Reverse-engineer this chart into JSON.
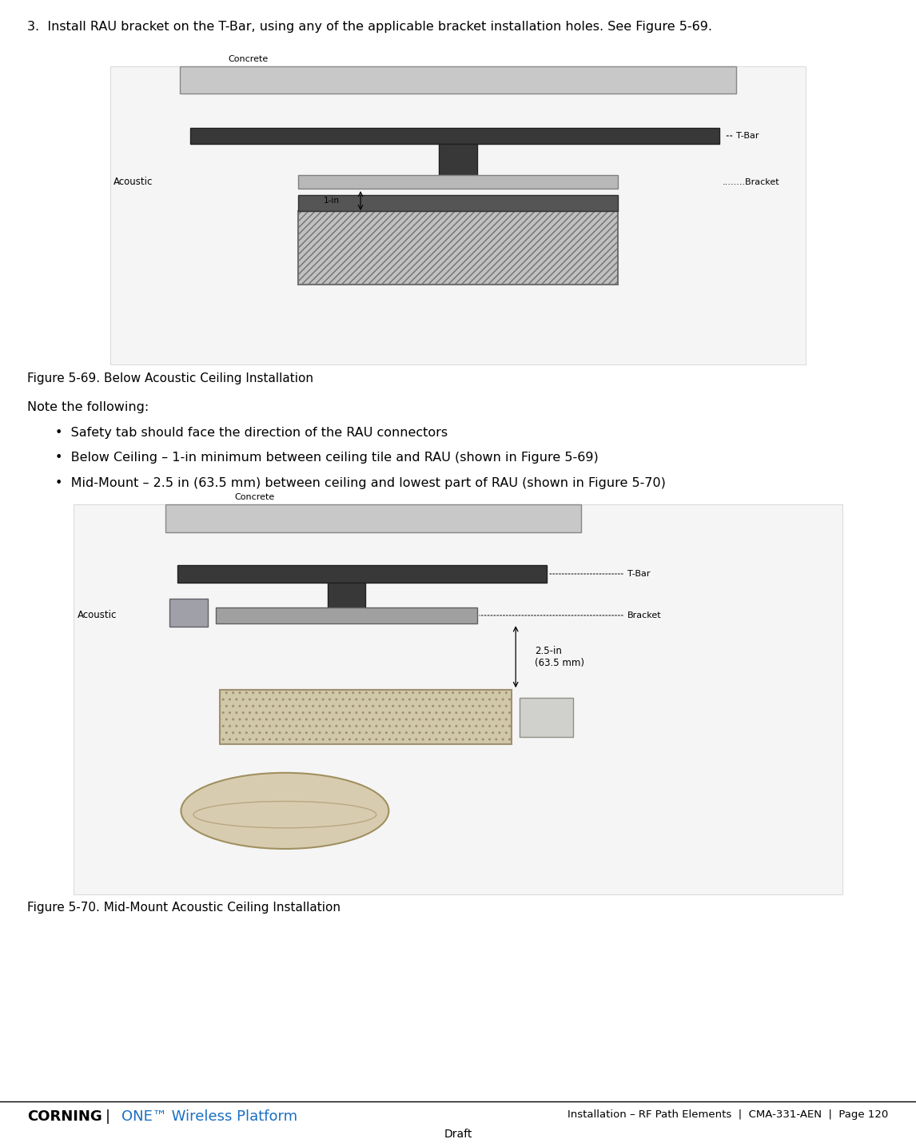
{
  "bg_color": "#ffffff",
  "text_color": "#000000",
  "step_text": "3.  Install RAU bracket on the T-Bar, using any of the applicable bracket installation holes. See Figure 5-69.",
  "fig69_caption": "Figure 5-69. Below Acoustic Ceiling Installation",
  "note_header": "Note the following:",
  "bullets": [
    "Safety tab should face the direction of the RAU connectors",
    "Below Ceiling – 1-in minimum between ceiling tile and RAU (shown in Figure 5-69)",
    "Mid-Mount – 2.5 in (63.5 mm) between ceiling and lowest part of RAU (shown in Figure 5-70)"
  ],
  "fig70_caption": "Figure 5-70. Mid-Mount Acoustic Ceiling Installation",
  "footer_left": "CORNING",
  "footer_left2": "ONE™ Wireless Platform",
  "footer_right": "Installation – RF Path Elements  |  CMA-331-AEN  |  Page 120",
  "footer_draft": "Draft",
  "watermark": "DRAFT"
}
